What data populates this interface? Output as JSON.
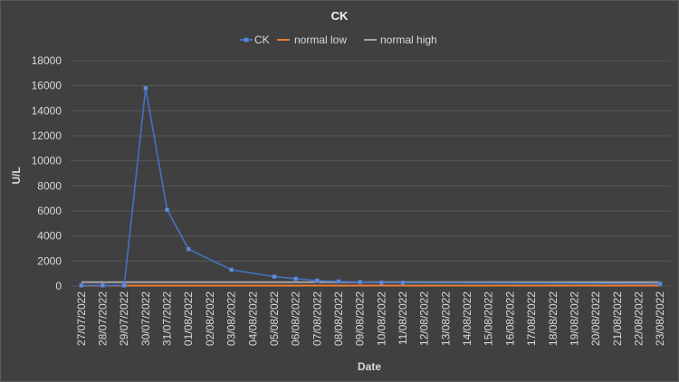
{
  "chart_data": {
    "type": "line",
    "title": "CK",
    "xlabel": "Date",
    "ylabel": "U/L",
    "ylim": [
      0,
      18000
    ],
    "yticks": [
      "0",
      "2000",
      "4000",
      "6000",
      "8000",
      "10000",
      "12000",
      "14000",
      "16000",
      "18000"
    ],
    "grid": true,
    "legend_position": "top",
    "categories": [
      "27/07/2022",
      "28/07/2022",
      "29/07/2022",
      "30/07/2022",
      "31/07/2022",
      "01/08/2022",
      "02/08/2022",
      "03/08/2022",
      "04/08/2022",
      "05/08/2022",
      "06/08/2022",
      "07/08/2022",
      "08/08/2022",
      "09/08/2022",
      "10/08/2022",
      "11/08/2022",
      "12/08/2022",
      "13/08/2022",
      "14/08/2022",
      "15/08/2022",
      "16/08/2022",
      "17/08/2022",
      "18/08/2022",
      "19/08/2022",
      "20/08/2022",
      "21/08/2022",
      "22/08/2022",
      "23/08/2022"
    ],
    "series": [
      {
        "name": "CK",
        "color": "#4472c4",
        "markers": true,
        "points": [
          {
            "date": "27/07/2022",
            "value": 50
          },
          {
            "date": "28/07/2022",
            "value": 50
          },
          {
            "date": "29/07/2022",
            "value": 50
          },
          {
            "date": "30/07/2022",
            "value": 15800
          },
          {
            "date": "31/07/2022",
            "value": 6100
          },
          {
            "date": "01/08/2022",
            "value": 2950
          },
          {
            "date": "03/08/2022",
            "value": 1300
          },
          {
            "date": "05/08/2022",
            "value": 750
          },
          {
            "date": "06/08/2022",
            "value": 580
          },
          {
            "date": "07/08/2022",
            "value": 430
          },
          {
            "date": "08/08/2022",
            "value": 370
          },
          {
            "date": "09/08/2022",
            "value": 320
          },
          {
            "date": "10/08/2022",
            "value": 280
          },
          {
            "date": "11/08/2022",
            "value": 270
          },
          {
            "date": "23/08/2022",
            "value": 180
          }
        ]
      },
      {
        "name": "normal low",
        "color": "#ed7d31",
        "markers": false,
        "constant": 39
      },
      {
        "name": "normal high",
        "color": "#a5a5a5",
        "markers": false,
        "constant": 308
      }
    ]
  }
}
